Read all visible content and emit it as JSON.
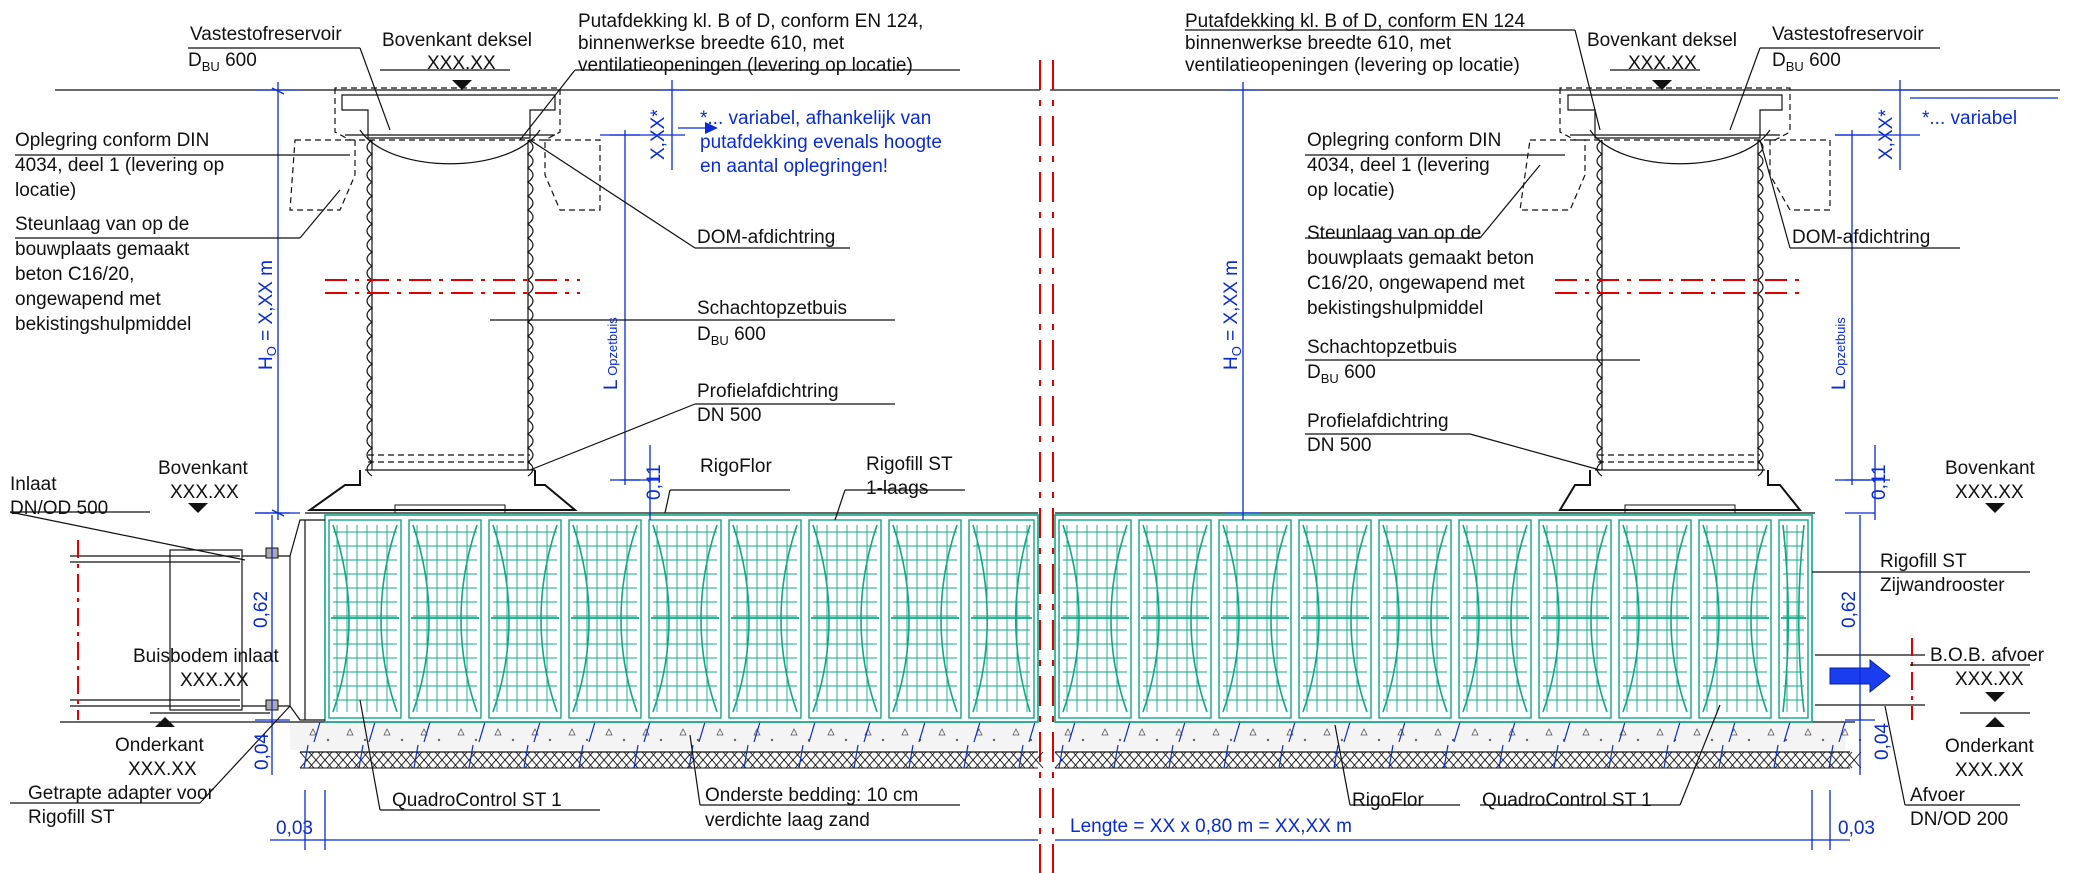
{
  "colors": {
    "crate": "#10a884",
    "dimension": "#0a2bd6",
    "axis": "#e00000",
    "line": "#111111"
  },
  "left": {
    "vastestofreservoir": "Vastestofreservoir",
    "dbu600_a_main": "D",
    "dbu600_a_sub": "BU",
    "dbu600_a_val": " 600",
    "bovenkant_deksel": "Bovenkant deksel",
    "bovenkant_deksel_val": "XXX.XX",
    "putafdekking_1": "Putafdekking kl. B of D, conform EN 124,",
    "putafdekking_2": "binnenwerkse breedte 610, met",
    "putafdekking_3": "ventilatieopeningen (levering op locatie)",
    "oplegring_1": "Oplegring conform DIN",
    "oplegring_2": "4034, deel 1 (levering op",
    "oplegring_3": "locatie)",
    "steunlaag_1": "Steunlaag van op de",
    "steunlaag_2": "bouwplaats gemaakt",
    "steunlaag_3": "beton C16/20,",
    "steunlaag_4": "ongewapend met",
    "steunlaag_5": "bekistingshulpmiddel",
    "variabel_1": "*... variabel, afhankelijk van",
    "variabel_2": "putafdekking evenals hoogte",
    "variabel_3": "en aantal oplegringen!",
    "xx_star": "X,XX*",
    "dom": "DOM-afdichtring",
    "schacht": "Schachtopzetbuis",
    "dbu600_b_main": "D",
    "dbu600_b_sub": "BU",
    "dbu600_b_val": " 600",
    "ho_main": "H",
    "ho_sub": "O",
    "ho_val": " = X,XX m",
    "l_main": "L",
    "l_sub": " Opzetbuis",
    "profiel_1": "Profielafdichtring",
    "profiel_2": "DN 500",
    "dim_011": "0,11",
    "rigoflor": "RigoFlor",
    "rigofill_1": "Rigofill ST",
    "rigofill_2": "1-laags",
    "inlaat_1": "Inlaat",
    "inlaat_2": "DN/OD 500",
    "bovenkant": "Bovenkant",
    "bovenkant_val": "XXX.XX",
    "dim_062": "0,62",
    "buisbodem": "Buisbodem inlaat",
    "buisbodem_val": "XXX.XX",
    "onderkant": "Onderkant",
    "onderkant_val": "XXX.XX",
    "dim_004": "0,04",
    "adapter_1": "Getrapte adapter voor",
    "adapter_2": "Rigofill ST",
    "quadro": "QuadroControl ST 1",
    "bedding_1": "Onderste bedding: 10 cm",
    "bedding_2": "verdichte laag zand",
    "dim_003": "0,03"
  },
  "right": {
    "putafdekking_1": "Putafdekking kl. B of D, conform EN 124",
    "putafdekking_2": "binnenwerkse breedte 610, met",
    "putafdekking_3": "ventilatieopeningen (levering op locatie)",
    "bovenkant_deksel": "Bovenkant deksel",
    "bovenkant_deksel_val": "XXX.XX",
    "vastestofreservoir": "Vastestofreservoir",
    "dbu600_a_main": "D",
    "dbu600_a_sub": "BU",
    "dbu600_a_val": " 600",
    "xx_star": "X,XX*",
    "variabel": "*... variabel",
    "oplegring_1": "Oplegring conform DIN",
    "oplegring_2": "4034, deel 1  (levering",
    "oplegring_3": "op locatie)",
    "steunlaag_1": "Steunlaag van op de",
    "steunlaag_2": "bouwplaats gemaakt beton",
    "steunlaag_3": "C16/20, ongewapend met",
    "steunlaag_4": "bekistingshulpmiddel",
    "dom": "DOM-afdichtring",
    "ho_main": "H",
    "ho_sub": "O",
    "ho_val": " = X,XX m",
    "l_main": "L",
    "l_sub": " Opzetbuis",
    "schacht": "Schachtopzetbuis",
    "dbu600_b_main": "D",
    "dbu600_b_sub": "BU",
    "dbu600_b_val": " 600",
    "profiel_1": "Profielafdichtring",
    "profiel_2": "DN 500",
    "dim_011": "0,11",
    "bovenkant": "Bovenkant",
    "bovenkant_val": "XXX.XX",
    "rigofill_1": "Rigofill ST",
    "rigofill_2": "Zijwandrooster",
    "dim_062": "0,62",
    "bob": "B.O.B. afvoer",
    "bob_val": "XXX.XX",
    "onderkant": "Onderkant",
    "onderkant_val": "XXX.XX",
    "dim_004": "0,04",
    "rigoflor": "RigoFlor",
    "quadro": "QuadroControl ST 1",
    "afvoer_1": "Afvoer",
    "afvoer_2": "DN/OD 200",
    "dim_003": "0,03"
  },
  "lengte": "Lengte = XX x 0,80 m = XX,XX m"
}
